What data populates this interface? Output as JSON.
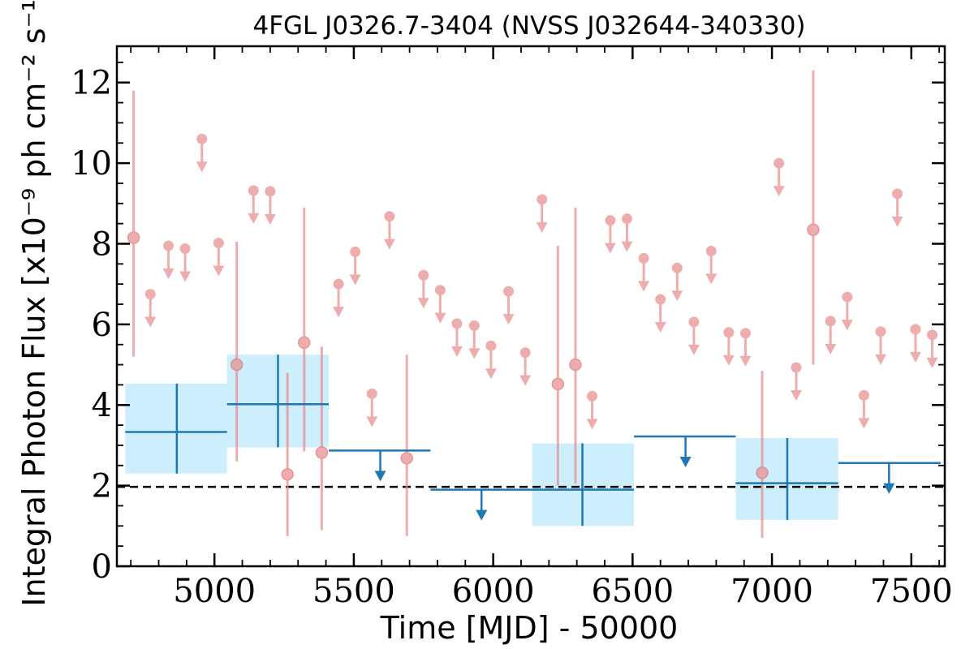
{
  "chart_data": {
    "type": "scatter",
    "title": "4FGL J0326.7-3404 (NVSS J032644-340330)",
    "xlabel": "Time [MJD] - 50000",
    "ylabel": "Integral Photon Flux [x10⁻⁹ ph cm⁻² s⁻¹]",
    "xlim": [
      4650,
      7620
    ],
    "ylim": [
      0,
      12.9
    ],
    "xticks": [
      5000,
      5500,
      6000,
      6500,
      7000,
      7500
    ],
    "xtick_labels": [
      "5000",
      "5500",
      "6000",
      "6500",
      "7000",
      "7500"
    ],
    "yticks": [
      0,
      2,
      4,
      6,
      8,
      10,
      12
    ],
    "ytick_labels": [
      "0",
      "2",
      "4",
      "6",
      "8",
      "10",
      "12"
    ],
    "grid": false,
    "reference_line": {
      "y": 1.97,
      "style": "dashed",
      "color": "#000000"
    },
    "colors": {
      "short_bins": "#e88e8e",
      "long_bins": "#1f77b4",
      "long_bins_band": "#cdeefd"
    },
    "short_bins": {
      "detections": [
        {
          "x": 4710,
          "y": 8.15,
          "ylow": 5.2,
          "yhigh": 11.8
        },
        {
          "x": 5080,
          "y": 5.0,
          "ylow": 2.6,
          "yhigh": 8.05
        },
        {
          "x": 5262,
          "y": 2.28,
          "ylow": 0.75,
          "yhigh": 4.8
        },
        {
          "x": 5322,
          "y": 5.55,
          "ylow": 2.85,
          "yhigh": 8.9
        },
        {
          "x": 5385,
          "y": 2.82,
          "ylow": 0.9,
          "yhigh": 5.45
        },
        {
          "x": 5690,
          "y": 2.68,
          "ylow": 0.75,
          "yhigh": 5.25
        },
        {
          "x": 6232,
          "y": 4.52,
          "ylow": 2.0,
          "yhigh": 7.95
        },
        {
          "x": 6295,
          "y": 5.0,
          "ylow": 2.05,
          "yhigh": 8.9
        },
        {
          "x": 6965,
          "y": 2.32,
          "ylow": 0.7,
          "yhigh": 4.85
        },
        {
          "x": 7148,
          "y": 8.35,
          "ylow": 5.0,
          "yhigh": 12.3
        }
      ],
      "upper_limits": [
        {
          "x": 4770,
          "y": 6.75
        },
        {
          "x": 4835,
          "y": 7.95
        },
        {
          "x": 4895,
          "y": 7.88
        },
        {
          "x": 4955,
          "y": 10.6
        },
        {
          "x": 5015,
          "y": 8.02
        },
        {
          "x": 5140,
          "y": 9.32
        },
        {
          "x": 5200,
          "y": 9.3
        },
        {
          "x": 5445,
          "y": 7.0
        },
        {
          "x": 5505,
          "y": 7.8
        },
        {
          "x": 5565,
          "y": 4.28
        },
        {
          "x": 5628,
          "y": 8.68
        },
        {
          "x": 5750,
          "y": 7.22
        },
        {
          "x": 5810,
          "y": 6.85
        },
        {
          "x": 5870,
          "y": 6.02
        },
        {
          "x": 5932,
          "y": 5.97
        },
        {
          "x": 5992,
          "y": 5.47
        },
        {
          "x": 6055,
          "y": 6.82
        },
        {
          "x": 6115,
          "y": 5.3
        },
        {
          "x": 6175,
          "y": 9.1
        },
        {
          "x": 6355,
          "y": 4.22
        },
        {
          "x": 6420,
          "y": 8.58
        },
        {
          "x": 6480,
          "y": 8.62
        },
        {
          "x": 6540,
          "y": 7.64
        },
        {
          "x": 6600,
          "y": 6.62
        },
        {
          "x": 6660,
          "y": 7.4
        },
        {
          "x": 6720,
          "y": 6.06
        },
        {
          "x": 6782,
          "y": 7.82
        },
        {
          "x": 6845,
          "y": 5.8
        },
        {
          "x": 6905,
          "y": 5.78
        },
        {
          "x": 7025,
          "y": 10.0
        },
        {
          "x": 7087,
          "y": 4.93
        },
        {
          "x": 7210,
          "y": 6.08
        },
        {
          "x": 7270,
          "y": 6.68
        },
        {
          "x": 7330,
          "y": 4.24
        },
        {
          "x": 7390,
          "y": 5.82
        },
        {
          "x": 7450,
          "y": 9.24
        },
        {
          "x": 7515,
          "y": 5.88
        },
        {
          "x": 7575,
          "y": 5.74
        }
      ]
    },
    "long_bins": {
      "detections": [
        {
          "x": 4865,
          "xlow": 4680,
          "xhigh": 5045,
          "y": 3.33,
          "ylow": 2.3,
          "yhigh": 4.53
        },
        {
          "x": 5228,
          "xlow": 5045,
          "xhigh": 5410,
          "y": 4.02,
          "ylow": 2.95,
          "yhigh": 5.25
        },
        {
          "x": 6320,
          "xlow": 6140,
          "xhigh": 6505,
          "y": 1.9,
          "ylow": 1.0,
          "yhigh": 3.05
        },
        {
          "x": 7055,
          "xlow": 6870,
          "xhigh": 7238,
          "y": 2.06,
          "ylow": 1.15,
          "yhigh": 3.18
        }
      ],
      "upper_limits": [
        {
          "x": 5595,
          "xlow": 5410,
          "xhigh": 5775,
          "y": 2.87
        },
        {
          "x": 5958,
          "xlow": 5775,
          "xhigh": 6140,
          "y": 1.9
        },
        {
          "x": 6690,
          "xlow": 6505,
          "xhigh": 6870,
          "y": 3.22
        },
        {
          "x": 7420,
          "xlow": 7238,
          "xhigh": 7605,
          "y": 2.56
        }
      ]
    }
  }
}
